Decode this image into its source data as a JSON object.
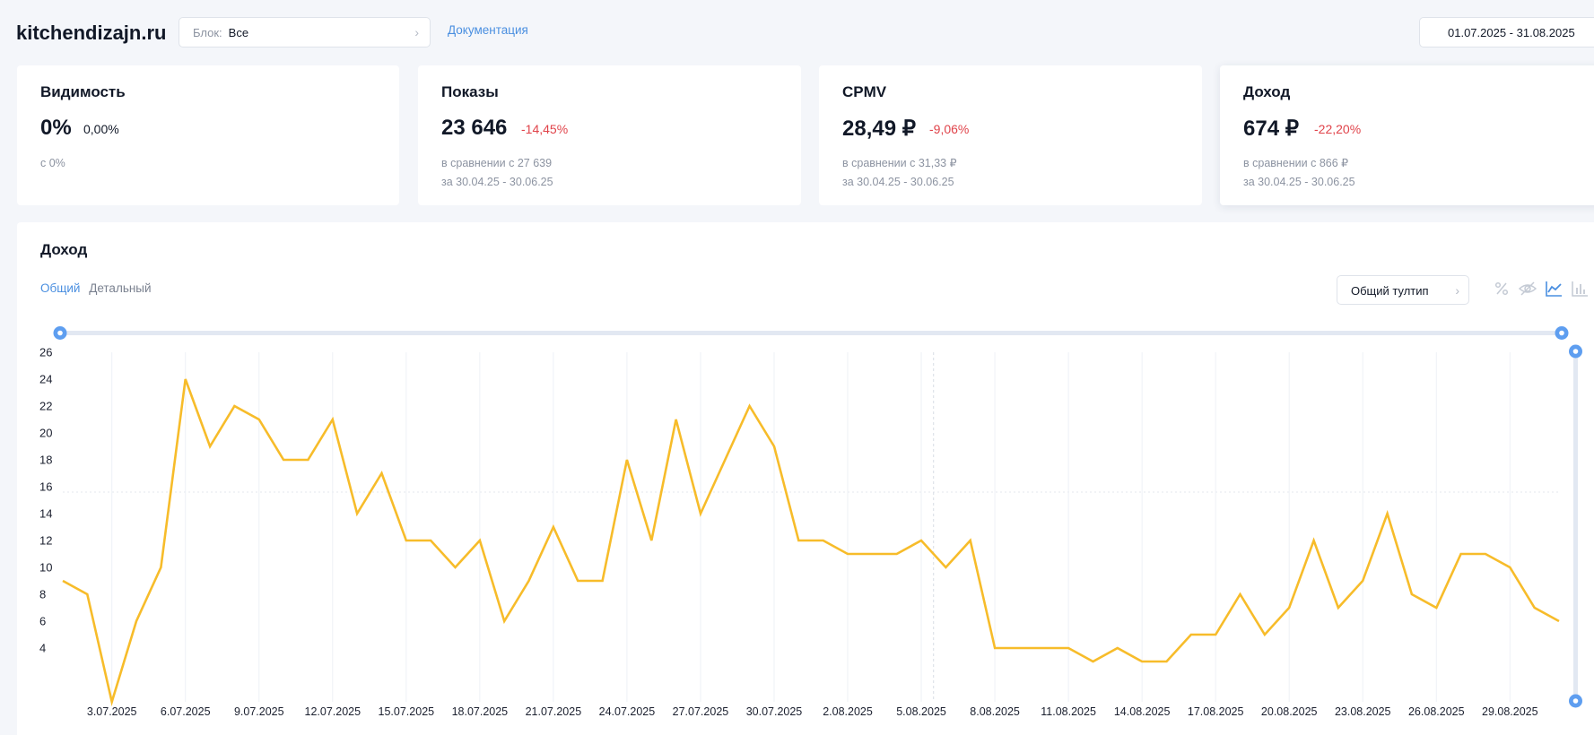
{
  "header": {
    "site": "kitchendizajn.ru",
    "block_label": "Блок:",
    "block_value": "Все",
    "doc_link": "Документация",
    "date_range": "01.07.2025 - 31.08.2025"
  },
  "cards": [
    {
      "title": "Видимость",
      "value": "0%",
      "change": "0,00%",
      "compare": "с 0%",
      "period": ""
    },
    {
      "title": "Показы",
      "value": "23 646",
      "change": "-14,45%",
      "compare": "в сравнении с 27 639",
      "period": "за 30.04.25 - 30.06.25"
    },
    {
      "title": "CPMV",
      "value": "28,49 ₽",
      "change": "-9,06%",
      "compare": "в сравнении с 31,33 ₽",
      "period": "за 30.04.25 - 30.06.25"
    },
    {
      "title": "Доход",
      "value": "674 ₽",
      "change": "-22,20%",
      "compare": "в сравнении с 866 ₽",
      "period": "за 30.04.25 - 30.06.25"
    }
  ],
  "panel": {
    "title": "Доход",
    "tab_general": "Общий",
    "tab_detailed": "Детальный",
    "tooltip_select": "Общий тултип",
    "icons": [
      "percent-icon",
      "eye-off-icon",
      "line-chart-icon",
      "bar-chart-icon"
    ]
  },
  "colors": {
    "accent": "#4a8fe0",
    "line": "#f7bc2a",
    "negative": "#e0434a"
  },
  "chart_data": {
    "type": "line",
    "x": [
      "01.07.2025",
      "02.07.2025",
      "03.07.2025",
      "04.07.2025",
      "05.07.2025",
      "06.07.2025",
      "07.07.2025",
      "08.07.2025",
      "09.07.2025",
      "10.07.2025",
      "11.07.2025",
      "12.07.2025",
      "13.07.2025",
      "14.07.2025",
      "15.07.2025",
      "16.07.2025",
      "17.07.2025",
      "18.07.2025",
      "19.07.2025",
      "20.07.2025",
      "21.07.2025",
      "22.07.2025",
      "23.07.2025",
      "24.07.2025",
      "25.07.2025",
      "26.07.2025",
      "27.07.2025",
      "28.07.2025",
      "29.07.2025",
      "30.07.2025",
      "31.07.2025",
      "01.08.2025",
      "02.08.2025",
      "03.08.2025",
      "04.08.2025",
      "05.08.2025",
      "06.08.2025",
      "07.08.2025",
      "08.08.2025",
      "09.08.2025",
      "10.08.2025",
      "11.08.2025",
      "12.08.2025",
      "13.08.2025",
      "14.08.2025",
      "15.08.2025",
      "16.08.2025",
      "17.08.2025",
      "18.08.2025",
      "19.08.2025",
      "20.08.2025",
      "21.08.2025",
      "22.08.2025",
      "23.08.2025",
      "24.08.2025",
      "25.08.2025",
      "26.08.2025",
      "27.08.2025",
      "28.08.2025",
      "29.08.2025",
      "30.08.2025",
      "31.08.2025"
    ],
    "x_tick_labels": [
      "3.07.2025",
      "6.07.2025",
      "9.07.2025",
      "12.07.2025",
      "15.07.2025",
      "18.07.2025",
      "21.07.2025",
      "24.07.2025",
      "27.07.2025",
      "30.07.2025",
      "2.08.2025",
      "5.08.2025",
      "8.08.2025",
      "11.08.2025",
      "14.08.2025",
      "17.08.2025",
      "20.08.2025",
      "23.08.2025",
      "26.08.2025",
      "29.08.2025"
    ],
    "values": [
      9,
      8,
      0,
      6,
      10,
      24,
      19,
      22,
      21,
      18,
      18,
      21,
      14,
      17,
      12,
      12,
      10,
      12,
      6,
      9,
      13,
      9,
      9,
      18,
      12,
      21,
      14,
      18,
      22,
      19,
      12,
      12,
      11,
      11,
      11,
      12,
      10,
      12,
      4,
      4,
      4,
      4,
      3,
      4,
      3,
      3,
      5,
      5,
      8,
      5,
      7,
      12,
      7,
      9,
      14,
      8,
      7,
      11,
      11,
      10,
      7,
      6
    ],
    "y_ticks": [
      4,
      6,
      8,
      10,
      12,
      14,
      16,
      18,
      20,
      22,
      24,
      26
    ],
    "ylim": [
      0,
      26
    ],
    "title": "",
    "xlabel": "",
    "ylabel": "",
    "grid": true
  }
}
